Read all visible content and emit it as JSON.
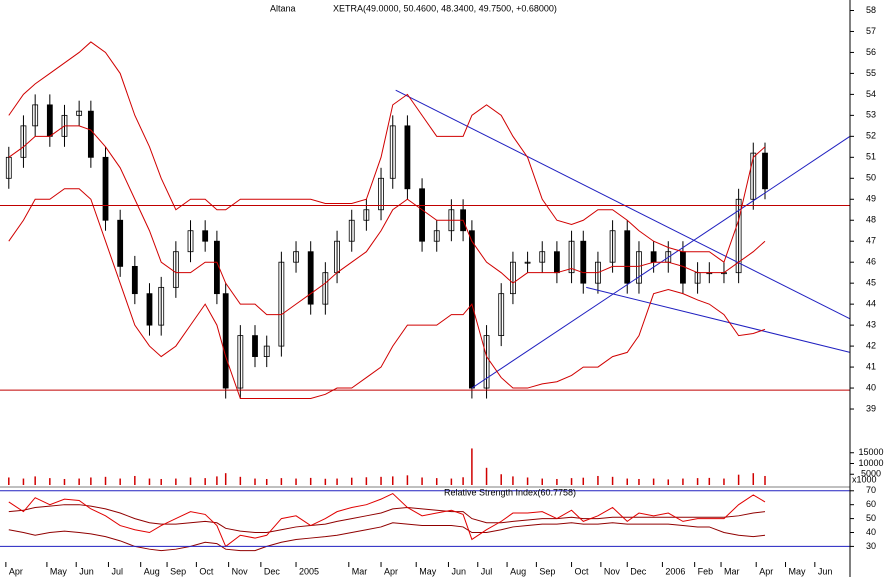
{
  "chart_data": [
    {
      "type": "candlestick",
      "title": "Altana",
      "subtitle": "XETRA(49.0000, 50.4600, 48.3400, 49.7500, +0.68000)",
      "xlim": [
        0,
        290
      ],
      "xticks": [
        {
          "value": 2,
          "label": "Apr"
        },
        {
          "value": 16,
          "label": "May"
        },
        {
          "value": 26,
          "label": "Jun"
        },
        {
          "value": 37,
          "label": "Jul"
        },
        {
          "value": 48,
          "label": "Aug"
        },
        {
          "value": 57,
          "label": "Sep"
        },
        {
          "value": 67,
          "label": "Oct"
        },
        {
          "value": 78,
          "label": "Nov"
        },
        {
          "value": 89,
          "label": "Dec"
        },
        {
          "value": 101,
          "label": "2005"
        },
        {
          "value": 119,
          "label": "Mar"
        },
        {
          "value": 130,
          "label": "Apr"
        },
        {
          "value": 142,
          "label": "May"
        },
        {
          "value": 153,
          "label": "Jun"
        },
        {
          "value": 163,
          "label": "Jul"
        },
        {
          "value": 173,
          "label": "Aug"
        },
        {
          "value": 183,
          "label": "Sep"
        },
        {
          "value": 195,
          "label": "Oct"
        },
        {
          "value": 205,
          "label": "Nov"
        },
        {
          "value": 214,
          "label": "Dec"
        },
        {
          "value": 226,
          "label": "2006"
        },
        {
          "value": 237,
          "label": "Feb"
        },
        {
          "value": 246,
          "label": "Mar"
        },
        {
          "value": 258,
          "label": "Apr"
        },
        {
          "value": 268,
          "label": "May"
        },
        {
          "value": 278,
          "label": "Jun"
        }
      ],
      "ylim": [
        38,
        58.5
      ],
      "yticks": [
        39,
        40,
        41,
        42,
        43,
        44,
        45,
        46,
        47,
        48,
        49,
        50,
        51,
        52,
        53,
        54,
        55,
        56,
        57,
        58
      ],
      "x": [
        3,
        8,
        12,
        17,
        22,
        27,
        31,
        36,
        41,
        46,
        51,
        55,
        60,
        65,
        70,
        74,
        77,
        82,
        87,
        91,
        96,
        101,
        106,
        111,
        115,
        120,
        125,
        130,
        134,
        139,
        144,
        149,
        154,
        158,
        161,
        166,
        171,
        175,
        180,
        185,
        190,
        195,
        199,
        204,
        209,
        214,
        218,
        223,
        228,
        233,
        238,
        242,
        247,
        252,
        257,
        261
      ],
      "open": [
        50,
        51,
        52.5,
        53.5,
        52,
        53,
        53.2,
        51,
        48,
        45.8,
        44.5,
        43,
        44.8,
        46.5,
        47.5,
        47,
        44.5,
        40,
        42.5,
        41.5,
        42,
        46,
        46.5,
        44,
        45.5,
        47,
        48,
        48.5,
        50,
        52.5,
        49.5,
        47,
        47.5,
        48.5,
        47.5,
        40,
        42.5,
        44.5,
        46,
        46,
        46.5,
        45.5,
        47,
        45,
        46,
        47.5,
        45,
        46.5,
        46,
        46.5,
        45,
        45.5,
        45.5,
        45.5,
        49,
        51.2
      ],
      "high": [
        51.5,
        53,
        54,
        54,
        53.5,
        53.7,
        53.7,
        51.5,
        48.5,
        46.3,
        45,
        45.3,
        47,
        48,
        48,
        47.5,
        45,
        43,
        43,
        42.5,
        46.5,
        47,
        47,
        46,
        47.5,
        48.5,
        49,
        50.5,
        53,
        53,
        50,
        48,
        49,
        49,
        48,
        43,
        45,
        46.5,
        46.5,
        47,
        47,
        47.5,
        47.5,
        46.5,
        48,
        48,
        47,
        47,
        47,
        47,
        46,
        46,
        46,
        49.5,
        51.7,
        51.7
      ],
      "low": [
        49.5,
        50.5,
        52,
        51.5,
        51.5,
        52.5,
        50.5,
        47.5,
        45.3,
        44,
        42.5,
        42.5,
        44.3,
        46,
        46.5,
        44,
        39.5,
        39.5,
        41,
        41,
        41.5,
        45.5,
        43.5,
        43.5,
        45,
        46.5,
        47.5,
        48,
        49.5,
        49,
        46.5,
        46.5,
        47,
        47,
        39.5,
        39.5,
        42,
        44,
        45.5,
        45.5,
        45,
        45,
        44.5,
        44.5,
        45.5,
        44.5,
        44.5,
        45.5,
        45.5,
        44.5,
        44.5,
        45,
        45,
        45,
        48.5,
        49
      ],
      "close": [
        51,
        52.5,
        53.5,
        52,
        53,
        53.2,
        51,
        48,
        45.8,
        44.5,
        43,
        44.8,
        46.5,
        47.5,
        47,
        44.5,
        40,
        42.5,
        41.5,
        42,
        46,
        46.5,
        44,
        45.5,
        47,
        48,
        48.5,
        50,
        52.5,
        49.5,
        47,
        47.5,
        48.5,
        47.5,
        40,
        42.5,
        44.5,
        46,
        46,
        46.5,
        45.5,
        47,
        45,
        46,
        47.5,
        45,
        46.5,
        46,
        46.5,
        45,
        45.5,
        45.5,
        45.5,
        49,
        51.2,
        49.5
      ],
      "series": [
        {
          "color": "#d00000",
          "values": [
            53,
            54,
            54.5,
            55,
            55.5,
            56,
            56.5,
            56,
            55,
            53,
            51.5,
            50,
            48.5,
            49,
            49,
            48.5,
            48.5,
            49,
            49,
            49,
            49,
            49,
            49,
            48.8,
            48.8,
            48.8,
            49,
            51,
            53.5,
            54,
            53,
            52,
            52,
            52,
            53,
            53.5,
            53,
            52,
            51,
            49,
            48,
            47.8,
            48,
            48.5,
            48.5,
            48,
            47.5,
            47,
            46.7,
            46.5,
            46.5,
            46.5,
            46,
            48,
            51,
            51.5
          ]
        },
        {
          "color": "#d00000",
          "values": [
            51,
            51.5,
            52,
            52,
            52.5,
            52.5,
            52.3,
            51.5,
            50.5,
            49,
            47.5,
            46,
            45.5,
            45.5,
            46,
            46,
            45,
            44,
            44,
            43.5,
            43.5,
            44,
            44.5,
            45,
            45.5,
            46,
            46.5,
            47.5,
            48.5,
            49,
            48.5,
            48,
            48,
            48,
            47,
            46,
            45.5,
            45,
            45.5,
            45.5,
            45.5,
            45.7,
            45.5,
            45.5,
            45.8,
            45.8,
            45.8,
            46,
            46,
            45.8,
            45.5,
            45.5,
            45.5,
            46,
            46.5,
            47
          ]
        },
        {
          "color": "#d00000",
          "values": [
            47,
            48,
            49,
            49,
            49.5,
            49.5,
            49,
            47,
            45,
            43,
            42,
            41.5,
            42,
            43,
            44,
            43,
            41.5,
            39.5,
            39.5,
            39.5,
            39.5,
            39.5,
            39.5,
            39.7,
            40,
            40,
            40.5,
            41,
            42,
            43,
            43,
            43,
            43.5,
            43.5,
            44,
            41.5,
            40.5,
            40,
            40,
            40.2,
            40.3,
            40.6,
            41,
            41,
            41.5,
            41.7,
            42.5,
            44.5,
            44.7,
            44.5,
            44.2,
            44,
            43.5,
            42.5,
            42.6,
            42.8
          ]
        }
      ],
      "hlines": [
        48.7,
        39.9
      ],
      "hline_color": "#c00000",
      "trendlines": [
        {
          "x": [
            135,
            290
          ],
          "y": [
            54.2,
            43.3
          ]
        },
        {
          "x": [
            161,
            290
          ],
          "y": [
            40,
            52
          ]
        },
        {
          "x": [
            200,
            290
          ],
          "y": [
            44.8,
            41.7
          ]
        }
      ],
      "trend_color": "#2020c0"
    },
    {
      "type": "bar",
      "label": "x1000",
      "color": "#d00000",
      "ylim": [
        0,
        20000
      ],
      "yticks": [
        5000,
        10000,
        15000
      ],
      "values": [
        3500,
        3000,
        4000,
        3200,
        2800,
        3000,
        3500,
        3800,
        3000,
        4200,
        3000,
        2800,
        3000,
        3500,
        3200,
        4000,
        5500,
        3800,
        3000,
        2800,
        3200,
        3000,
        3300,
        2900,
        3000,
        3400,
        3600,
        3800,
        4000,
        4500,
        3500,
        3200,
        3000,
        3600,
        17000,
        8000,
        5000,
        4000,
        3500,
        3000,
        2800,
        3200,
        3400,
        4200,
        3800,
        3000,
        2800,
        3000,
        2600,
        3000,
        3200,
        3300,
        3000,
        4800,
        5500,
        4200
      ]
    },
    {
      "type": "line",
      "title": "Relative Strength Index(60.7758)",
      "ylim": [
        8,
        72
      ],
      "yticks": [
        30,
        40,
        50,
        60,
        70
      ],
      "hlines": [
        70,
        30
      ],
      "hline_color": "#2020c0",
      "series": [
        {
          "color": "#e00000",
          "values": [
            62,
            55,
            65,
            60,
            64,
            63,
            57,
            52,
            45,
            42,
            40,
            45,
            50,
            55,
            53,
            45,
            30,
            38,
            36,
            38,
            50,
            52,
            45,
            50,
            55,
            58,
            60,
            64,
            68,
            58,
            52,
            54,
            56,
            53,
            35,
            42,
            48,
            54,
            54,
            55,
            50,
            56,
            48,
            52,
            58,
            48,
            54,
            52,
            54,
            48,
            50,
            50,
            50,
            60,
            67,
            62
          ]
        },
        {
          "color": "#900000",
          "values": [
            55,
            56,
            58,
            59,
            60,
            60,
            59,
            57,
            54,
            50,
            47,
            46,
            46,
            47,
            48,
            47,
            43,
            41,
            40,
            40,
            42,
            44,
            45,
            46,
            48,
            50,
            52,
            54,
            57,
            58,
            57,
            56,
            55,
            55,
            50,
            47,
            47,
            48,
            49,
            50,
            50,
            51,
            50,
            50,
            51,
            51,
            51,
            51,
            51,
            51,
            51,
            51,
            51,
            52,
            54,
            55
          ]
        },
        {
          "color": "#900000",
          "values": [
            42,
            40,
            38,
            40,
            41,
            40,
            39,
            37,
            34,
            30,
            28,
            27,
            28,
            30,
            33,
            32,
            28,
            27,
            27,
            30,
            33,
            35,
            36,
            37,
            38,
            40,
            42,
            44,
            47,
            46,
            45,
            45,
            45,
            44,
            40,
            40,
            42,
            44,
            45,
            46,
            46,
            47,
            46,
            46,
            47,
            46,
            46,
            46,
            46,
            45,
            44,
            44,
            40,
            38,
            37,
            38
          ]
        }
      ]
    }
  ]
}
